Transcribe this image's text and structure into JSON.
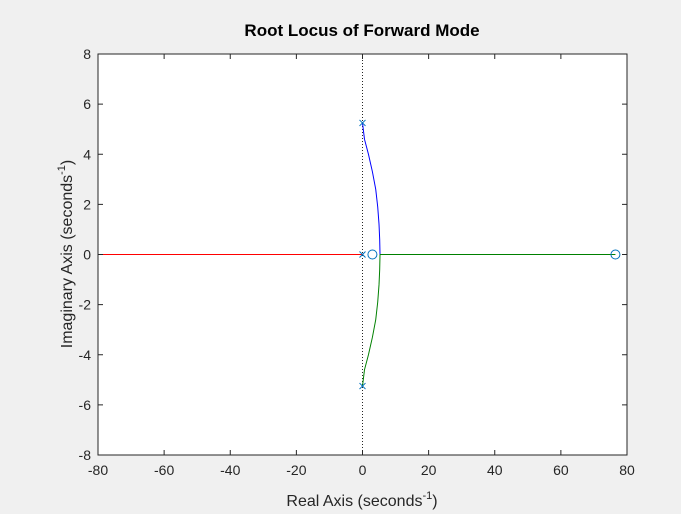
{
  "chart_data": {
    "type": "line",
    "title": "Root Locus of Forward Mode",
    "xlabel": "Real Axis (seconds",
    "xlabel_sup": "-1",
    "xlabel_close": ")",
    "ylabel": "Imaginary Axis (seconds",
    "ylabel_sup": "-1",
    "ylabel_close": ")",
    "xlim": [
      -80,
      80
    ],
    "ylim": [
      -8,
      8
    ],
    "xticks": [
      -80,
      -60,
      -40,
      -20,
      0,
      20,
      40,
      60,
      80
    ],
    "yticks": [
      -8,
      -6,
      -4,
      -2,
      0,
      2,
      4,
      6,
      8
    ],
    "grid": false,
    "poles": [
      {
        "x": 0,
        "y": 5.25
      },
      {
        "x": 0,
        "y": -5.25
      },
      {
        "x": 0,
        "y": 0
      }
    ],
    "zeros": [
      {
        "x": 3,
        "y": 0
      },
      {
        "x": 76.5,
        "y": 0
      }
    ],
    "series": [
      {
        "color": "#0000ff",
        "x": [
          0,
          0.6,
          1.8,
          3.0,
          4.0,
          4.6,
          5.0,
          5.2,
          5.3
        ],
        "y": [
          5.25,
          4.6,
          4.0,
          3.3,
          2.6,
          1.9,
          1.2,
          0.6,
          0
        ]
      },
      {
        "color": "#008000",
        "x": [
          0,
          0.6,
          1.8,
          3.0,
          4.0,
          4.6,
          5.0,
          5.2,
          5.3
        ],
        "y": [
          -5.25,
          -4.6,
          -4.0,
          -3.3,
          -2.6,
          -1.9,
          -1.2,
          -0.6,
          0
        ]
      },
      {
        "color": "#008000",
        "x": [
          5.3,
          76.5
        ],
        "y": [
          0,
          0
        ]
      },
      {
        "color": "#ff0000",
        "x": [
          0,
          -80
        ],
        "y": [
          0,
          0
        ]
      }
    ],
    "colors": {
      "axes_background": "#ffffff",
      "figure_background": "#f0f0f0",
      "axis_color": "#262626",
      "marker_color": "#0072bd"
    }
  }
}
